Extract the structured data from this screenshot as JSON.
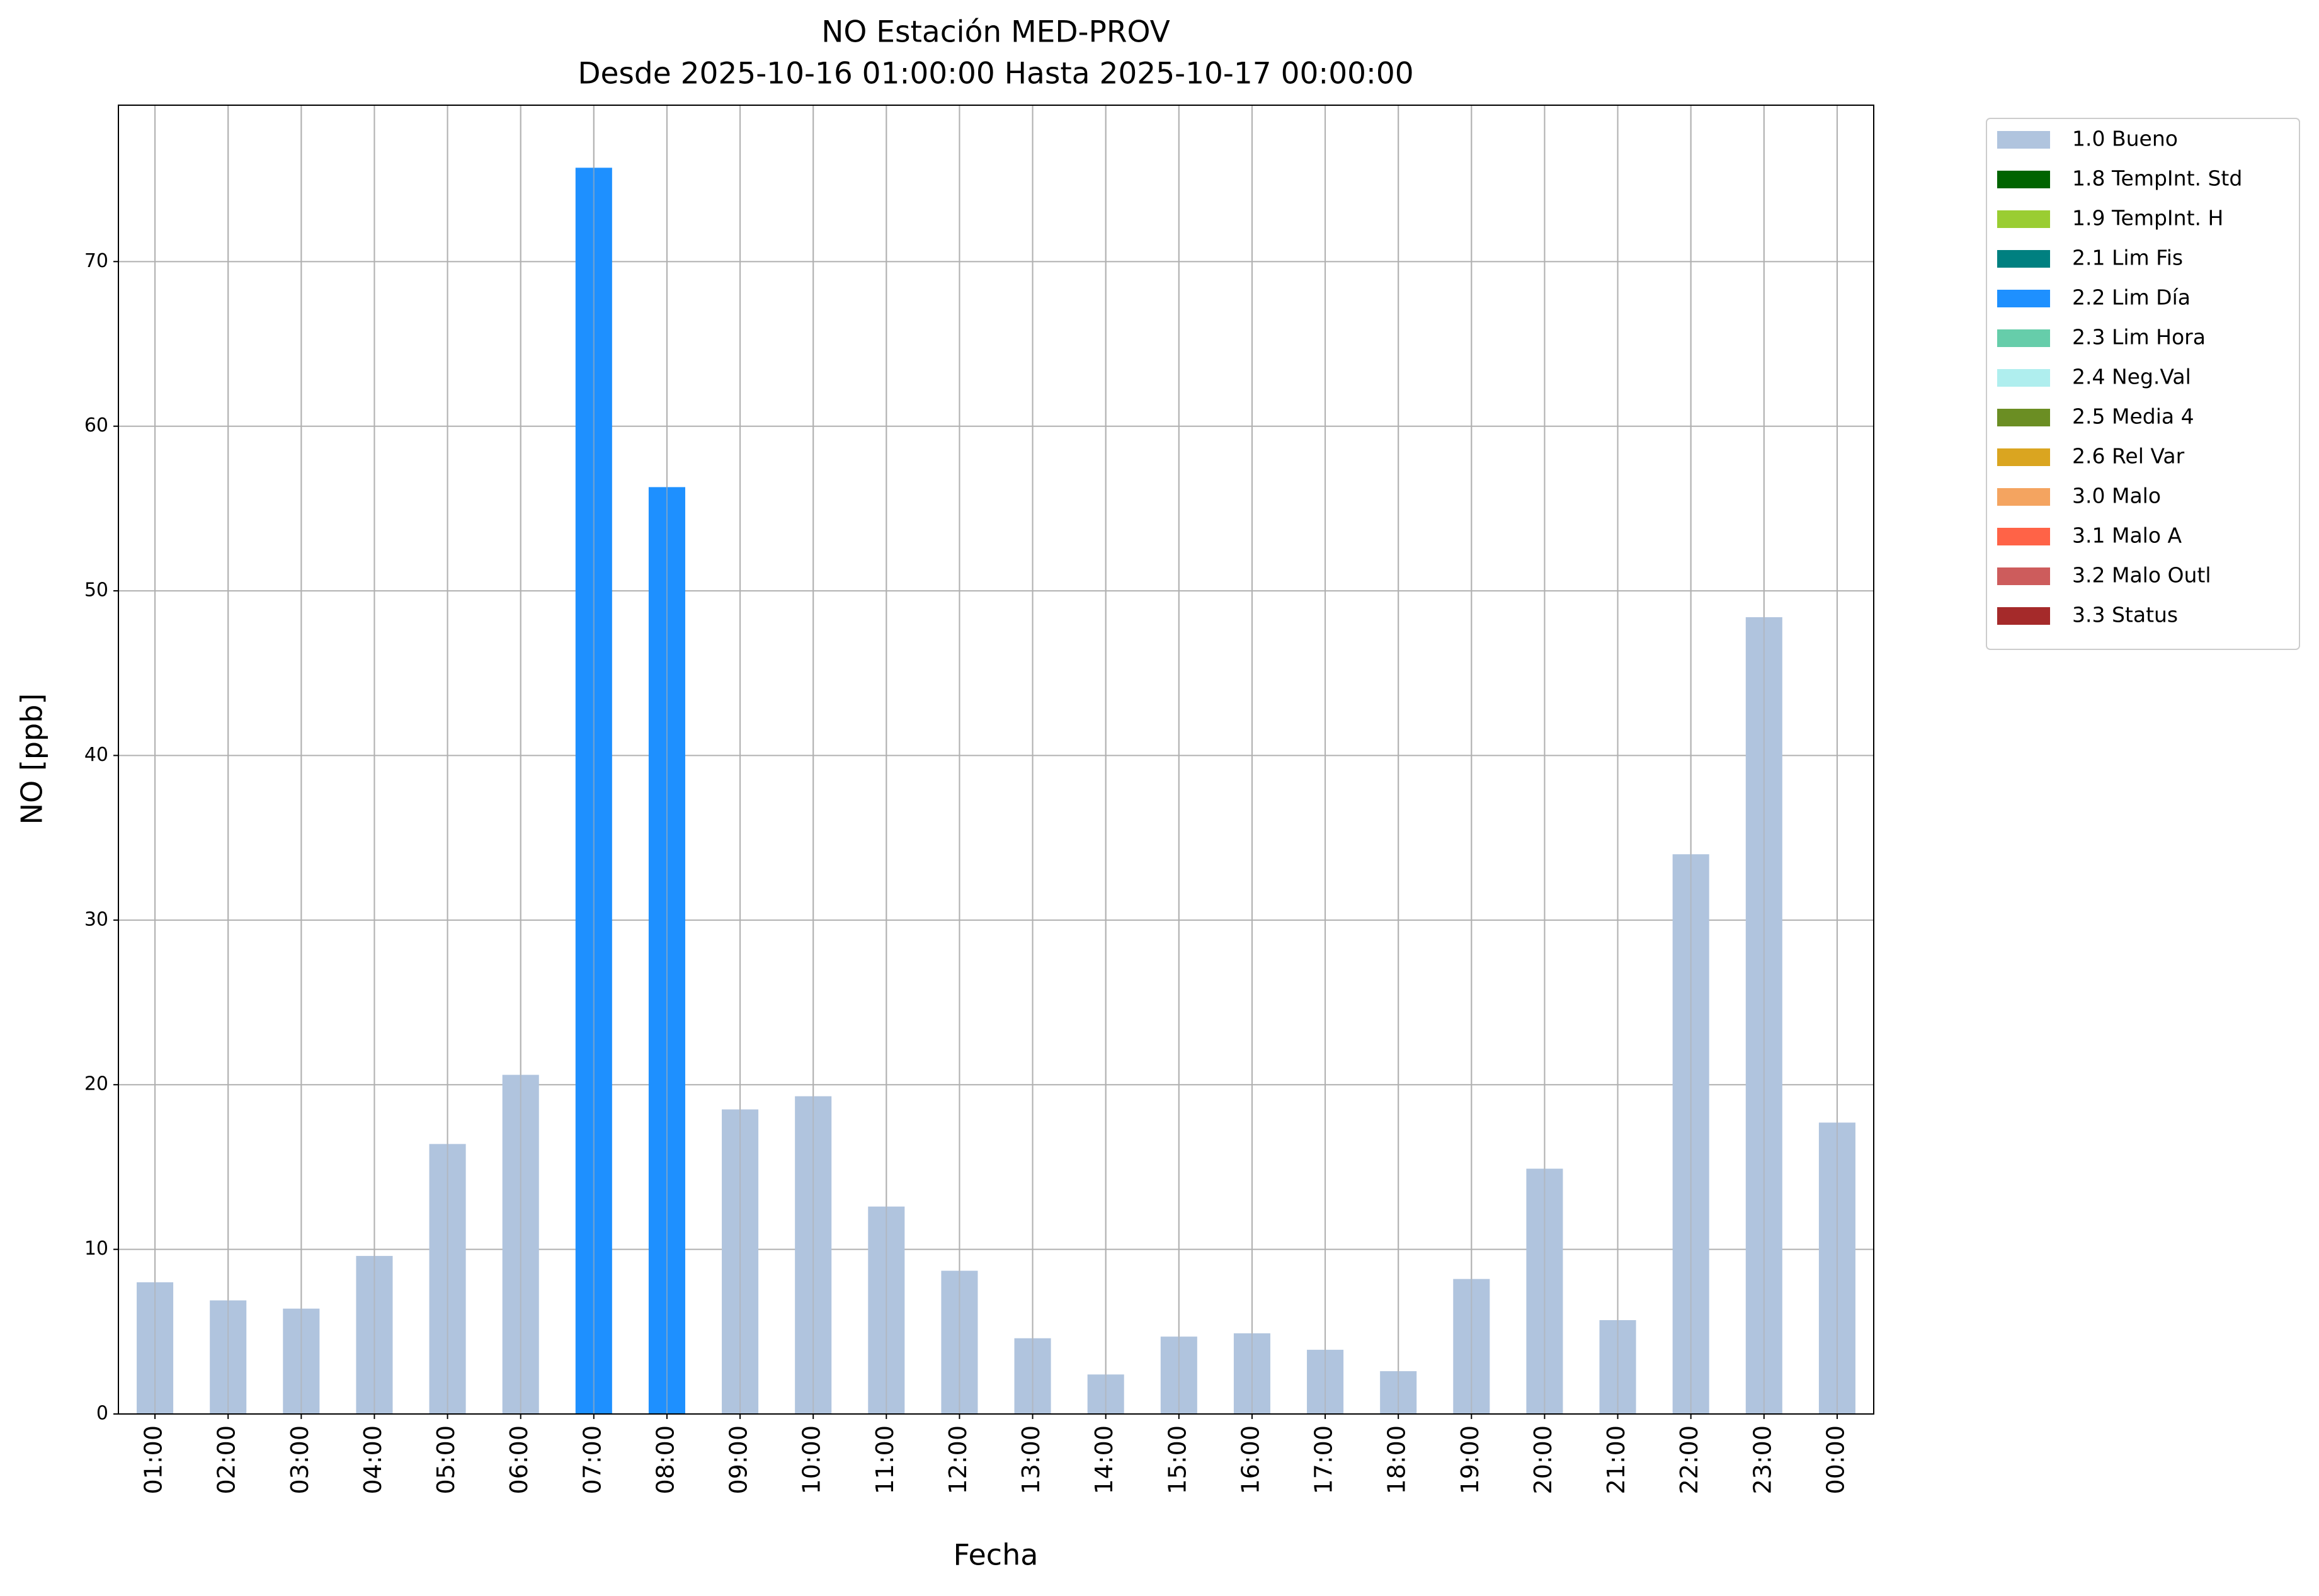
{
  "chart_data": {
    "type": "bar",
    "stacked": true,
    "title": "NO Estación MED-PROV",
    "subtitle": "Desde 2025-10-16 01:00:00 Hasta 2025-10-17 00:00:00",
    "x_label": "Fecha",
    "y_label": "NO [ppb]",
    "categories": [
      "01:00",
      "02:00",
      "03:00",
      "04:00",
      "05:00",
      "06:00",
      "07:00",
      "08:00",
      "09:00",
      "10:00",
      "11:00",
      "12:00",
      "13:00",
      "14:00",
      "15:00",
      "16:00",
      "17:00",
      "18:00",
      "19:00",
      "20:00",
      "21:00",
      "22:00",
      "23:00",
      "00:00"
    ],
    "series": [
      {
        "name": "1.0 Bueno",
        "color": "#b0c4de",
        "values": [
          8.0,
          6.9,
          6.4,
          9.6,
          16.4,
          20.6,
          null,
          null,
          18.5,
          19.3,
          12.6,
          8.7,
          4.6,
          2.4,
          4.7,
          4.9,
          3.9,
          2.6,
          8.2,
          14.9,
          5.7,
          34.0,
          48.4,
          17.7
        ]
      },
      {
        "name": "1.8 TempInt. Std",
        "color": "#006400",
        "values": [
          null,
          null,
          null,
          null,
          null,
          null,
          null,
          null,
          null,
          null,
          null,
          null,
          null,
          null,
          null,
          null,
          null,
          null,
          null,
          null,
          null,
          null,
          null,
          null
        ]
      },
      {
        "name": "1.9 TempInt. H",
        "color": "#9acd32",
        "values": [
          null,
          null,
          null,
          null,
          null,
          null,
          null,
          null,
          null,
          null,
          null,
          null,
          null,
          null,
          null,
          null,
          null,
          null,
          null,
          null,
          null,
          null,
          null,
          null
        ]
      },
      {
        "name": "2.1 Lim Fis",
        "color": "#008080",
        "values": [
          null,
          null,
          null,
          null,
          null,
          null,
          null,
          null,
          null,
          null,
          null,
          null,
          null,
          null,
          null,
          null,
          null,
          null,
          null,
          null,
          null,
          null,
          null,
          null
        ]
      },
      {
        "name": "2.2 Lim Día",
        "color": "#1e90ff",
        "values": [
          null,
          null,
          null,
          null,
          null,
          null,
          75.7,
          56.3,
          null,
          null,
          null,
          null,
          null,
          null,
          null,
          null,
          null,
          null,
          null,
          null,
          null,
          null,
          null,
          null
        ]
      },
      {
        "name": "2.3 Lim Hora",
        "color": "#66cdaa",
        "values": [
          null,
          null,
          null,
          null,
          null,
          null,
          null,
          null,
          null,
          null,
          null,
          null,
          null,
          null,
          null,
          null,
          null,
          null,
          null,
          null,
          null,
          null,
          null,
          null
        ]
      },
      {
        "name": "2.4 Neg.Val",
        "color": "#afeeee",
        "values": [
          null,
          null,
          null,
          null,
          null,
          null,
          null,
          null,
          null,
          null,
          null,
          null,
          null,
          null,
          null,
          null,
          null,
          null,
          null,
          null,
          null,
          null,
          null,
          null
        ]
      },
      {
        "name": "2.5 Media 4",
        "color": "#6b8e23",
        "values": [
          null,
          null,
          null,
          null,
          null,
          null,
          null,
          null,
          null,
          null,
          null,
          null,
          null,
          null,
          null,
          null,
          null,
          null,
          null,
          null,
          null,
          null,
          null,
          null
        ]
      },
      {
        "name": "2.6 Rel Var",
        "color": "#daa520",
        "values": [
          null,
          null,
          null,
          null,
          null,
          null,
          null,
          null,
          null,
          null,
          null,
          null,
          null,
          null,
          null,
          null,
          null,
          null,
          null,
          null,
          null,
          null,
          null,
          null
        ]
      },
      {
        "name": "3.0 Malo",
        "color": "#f4a460",
        "values": [
          null,
          null,
          null,
          null,
          null,
          null,
          null,
          null,
          null,
          null,
          null,
          null,
          null,
          null,
          null,
          null,
          null,
          null,
          null,
          null,
          null,
          null,
          null,
          null
        ]
      },
      {
        "name": "3.1 Malo A",
        "color": "#ff6347",
        "values": [
          null,
          null,
          null,
          null,
          null,
          null,
          null,
          null,
          null,
          null,
          null,
          null,
          null,
          null,
          null,
          null,
          null,
          null,
          null,
          null,
          null,
          null,
          null,
          null
        ]
      },
      {
        "name": "3.2 Malo Outl",
        "color": "#cd5c5c",
        "values": [
          null,
          null,
          null,
          null,
          null,
          null,
          null,
          null,
          null,
          null,
          null,
          null,
          null,
          null,
          null,
          null,
          null,
          null,
          null,
          null,
          null,
          null,
          null,
          null
        ]
      },
      {
        "name": "3.3 Status",
        "color": "#a52a2a",
        "values": [
          null,
          null,
          null,
          null,
          null,
          null,
          null,
          null,
          null,
          null,
          null,
          null,
          null,
          null,
          null,
          null,
          null,
          null,
          null,
          null,
          null,
          null,
          null,
          null
        ]
      }
    ],
    "ylim": [
      0,
      79.5
    ],
    "yticks": [
      0,
      10,
      20,
      30,
      40,
      50,
      60,
      70
    ],
    "grid": true,
    "legend": "outside right"
  }
}
